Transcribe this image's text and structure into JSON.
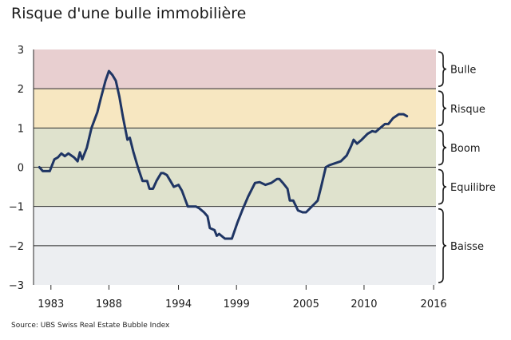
{
  "title": "Risque d'une bulle immobilière",
  "source": "Source: UBS Swiss Real Estate Bubble Index",
  "chart_data": {
    "type": "line",
    "title": "Risque d'une bulle immobilière",
    "xlabel": "",
    "ylabel": "",
    "xlim": [
      1981.5,
      2016.2
    ],
    "ylim": [
      -3,
      3
    ],
    "grid": false,
    "y_ticks": [
      3,
      2,
      1,
      0,
      -1,
      -2,
      -3
    ],
    "y_tick_labels": [
      "3",
      "2",
      "1",
      "0",
      "−1",
      "−2",
      "−3"
    ],
    "x_ticks": [
      1983,
      1988,
      1994,
      1999,
      2005,
      2010,
      2016
    ],
    "x_tick_labels": [
      "1983",
      "1988",
      "1994",
      "1999",
      "2005",
      "2010",
      "2016"
    ],
    "bands": [
      {
        "label": "Bulle",
        "from": 2,
        "to": 3,
        "color": "#e8cfd0"
      },
      {
        "label": "Risque",
        "from": 1,
        "to": 2,
        "color": "#f7e7c1"
      },
      {
        "label": "Boom",
        "from": 0,
        "to": 1,
        "color": "#dfe2cd"
      },
      {
        "label": "Equilibre",
        "from": -1,
        "to": 0,
        "color": "#dfe2cd"
      },
      {
        "label": "Baisse",
        "from": -3,
        "to": -1,
        "color": "#eceef1"
      }
    ],
    "series": [
      {
        "color": "#1f3564",
        "points": [
          [
            1982.0,
            0.0
          ],
          [
            1982.3,
            -0.1
          ],
          [
            1982.9,
            -0.1
          ],
          [
            1983.3,
            0.2
          ],
          [
            1983.6,
            0.25
          ],
          [
            1983.9,
            0.35
          ],
          [
            1984.2,
            0.28
          ],
          [
            1984.5,
            0.35
          ],
          [
            1985.0,
            0.25
          ],
          [
            1985.3,
            0.15
          ],
          [
            1985.5,
            0.38
          ],
          [
            1985.7,
            0.2
          ],
          [
            1986.1,
            0.5
          ],
          [
            1986.5,
            1.0
          ],
          [
            1987.0,
            1.4
          ],
          [
            1987.3,
            1.75
          ],
          [
            1987.7,
            2.2
          ],
          [
            1988.0,
            2.45
          ],
          [
            1988.3,
            2.35
          ],
          [
            1988.6,
            2.2
          ],
          [
            1988.9,
            1.8
          ],
          [
            1989.2,
            1.3
          ],
          [
            1989.6,
            0.7
          ],
          [
            1989.8,
            0.75
          ],
          [
            1990.1,
            0.4
          ],
          [
            1990.5,
            0.0
          ],
          [
            1990.9,
            -0.35
          ],
          [
            1991.3,
            -0.35
          ],
          [
            1991.5,
            -0.55
          ],
          [
            1991.8,
            -0.55
          ],
          [
            1992.1,
            -0.35
          ],
          [
            1992.5,
            -0.15
          ],
          [
            1992.7,
            -0.15
          ],
          [
            1993.0,
            -0.2
          ],
          [
            1993.3,
            -0.35
          ],
          [
            1993.6,
            -0.5
          ],
          [
            1994.0,
            -0.45
          ],
          [
            1994.3,
            -0.6
          ],
          [
            1994.8,
            -1.0
          ],
          [
            1995.5,
            -1.0
          ],
          [
            1995.8,
            -1.05
          ],
          [
            1996.2,
            -1.15
          ],
          [
            1996.5,
            -1.25
          ],
          [
            1996.7,
            -1.55
          ],
          [
            1997.1,
            -1.6
          ],
          [
            1997.3,
            -1.75
          ],
          [
            1997.5,
            -1.7
          ],
          [
            1998.0,
            -1.82
          ],
          [
            1998.6,
            -1.82
          ],
          [
            1999.1,
            -1.4
          ],
          [
            1999.5,
            -1.1
          ],
          [
            2000.0,
            -0.75
          ],
          [
            2000.6,
            -0.4
          ],
          [
            2001.0,
            -0.38
          ],
          [
            2001.5,
            -0.45
          ],
          [
            2002.0,
            -0.4
          ],
          [
            2002.5,
            -0.3
          ],
          [
            2002.7,
            -0.3
          ],
          [
            2003.0,
            -0.4
          ],
          [
            2003.4,
            -0.55
          ],
          [
            2003.6,
            -0.85
          ],
          [
            2003.9,
            -0.85
          ],
          [
            2004.3,
            -1.1
          ],
          [
            2004.7,
            -1.15
          ],
          [
            2005.0,
            -1.15
          ],
          [
            2005.5,
            -1.0
          ],
          [
            2006.0,
            -0.85
          ],
          [
            2006.3,
            -0.5
          ],
          [
            2006.7,
            0.0
          ],
          [
            2007.0,
            0.05
          ],
          [
            2007.5,
            0.1
          ],
          [
            2008.0,
            0.15
          ],
          [
            2008.5,
            0.3
          ],
          [
            2008.9,
            0.55
          ],
          [
            2009.1,
            0.7
          ],
          [
            2009.4,
            0.6
          ],
          [
            2009.8,
            0.7
          ],
          [
            2010.3,
            0.85
          ],
          [
            2010.7,
            0.92
          ],
          [
            2011.0,
            0.9
          ],
          [
            2011.4,
            1.0
          ],
          [
            2011.8,
            1.1
          ],
          [
            2012.1,
            1.1
          ],
          [
            2012.5,
            1.25
          ],
          [
            2013.0,
            1.35
          ],
          [
            2013.4,
            1.35
          ],
          [
            2013.7,
            1.3
          ]
        ]
      }
    ]
  }
}
